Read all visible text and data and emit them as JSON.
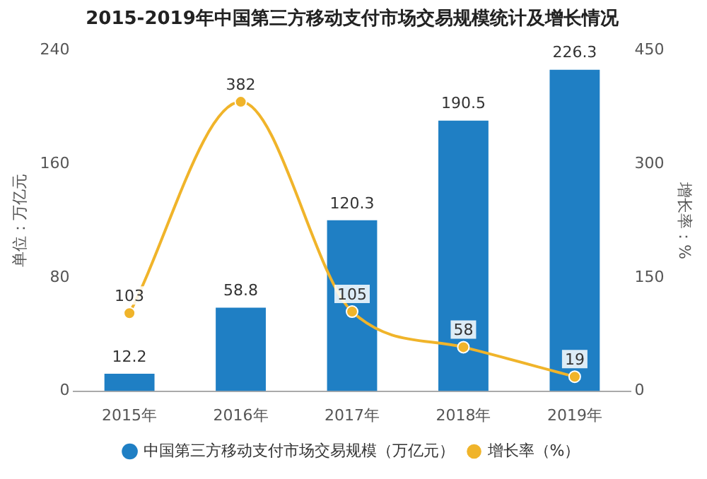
{
  "chart_data": {
    "type": "bar",
    "title": "2015-2019年中国第三方移动支付市场交易规模统计及增长情况",
    "ylabel": "单位：万亿元",
    "y2label": "增长率：%",
    "categories": [
      "2015年",
      "2016年",
      "2017年",
      "2018年",
      "2019年"
    ],
    "series": [
      {
        "name": "中国第三方移动支付市场交易规模（万亿元）",
        "color": "#1f7fc4",
        "values": [
          12.2,
          58.8,
          120.3,
          190.5,
          226.3
        ]
      },
      {
        "name": "增长率（%）",
        "type": "line",
        "axis": "y2",
        "color": "#f0b42a",
        "values": [
          103,
          382,
          105,
          58,
          19
        ]
      }
    ],
    "ylim": [
      0,
      240
    ],
    "yticks": [
      0,
      80,
      160,
      240
    ],
    "y2lim": [
      0,
      450
    ],
    "y2ticks": [
      0,
      150,
      300,
      450
    ],
    "grid": false,
    "legend": "bottom",
    "marker": "circle",
    "line_style": "solid",
    "data_labels": true
  }
}
